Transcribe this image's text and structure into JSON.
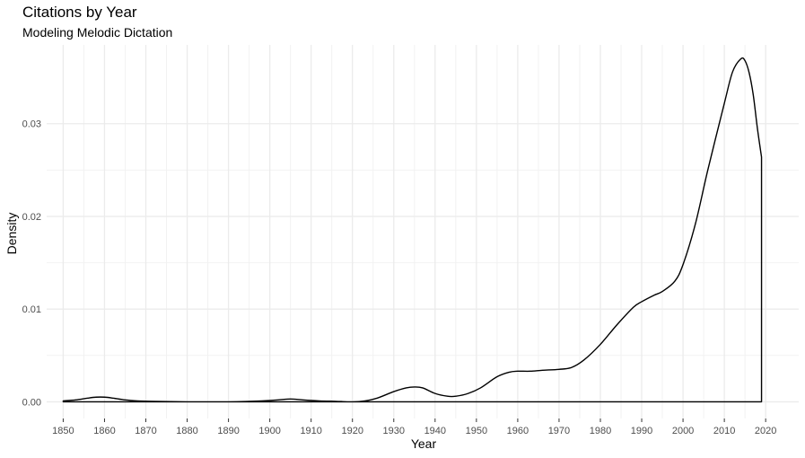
{
  "chart_data": {
    "type": "area",
    "title": "Citations by Year",
    "subtitle": "Modeling Melodic Dictation",
    "xlabel": "Year",
    "ylabel": "Density",
    "xlim": [
      1846,
      2028
    ],
    "ylim": [
      -0.0018,
      0.0385
    ],
    "x_ticks": [
      1850,
      1860,
      1870,
      1880,
      1890,
      1900,
      1910,
      1920,
      1930,
      1940,
      1950,
      1960,
      1970,
      1980,
      1990,
      2000,
      2010,
      2020
    ],
    "y_ticks": [
      0.0,
      0.01,
      0.02,
      0.03
    ],
    "y_tick_labels": [
      "0.00",
      "0.01",
      "0.02",
      "0.03"
    ],
    "grid": true,
    "legend": "none",
    "series": [
      {
        "x": [
          1850,
          1853,
          1856,
          1858,
          1860,
          1862,
          1865,
          1868,
          1872,
          1880,
          1890,
          1895,
          1898,
          1902,
          1905,
          1908,
          1912,
          1916,
          1920,
          1923,
          1926,
          1930,
          1933,
          1935,
          1937,
          1940,
          1943,
          1945,
          1948,
          1951,
          1955,
          1958,
          1960,
          1963,
          1966,
          1970,
          1973,
          1976,
          1980,
          1984,
          1988,
          1990,
          1993,
          1995,
          1998,
          2000,
          2003,
          2006,
          2010,
          2012,
          2014,
          2015,
          2016,
          2017,
          2018,
          2019
        ],
        "y": [
          0.0001,
          0.0002,
          0.0004,
          0.0005,
          0.0005,
          0.0004,
          0.0002,
          0.0001,
          5e-05,
          0.0,
          0.0,
          5e-05,
          0.0001,
          0.0002,
          0.0003,
          0.0002,
          0.0001,
          5e-05,
          0.0,
          0.0001,
          0.0004,
          0.0011,
          0.0015,
          0.0016,
          0.0015,
          0.0009,
          0.0006,
          0.0006,
          0.0009,
          0.0015,
          0.0027,
          0.0032,
          0.0033,
          0.0033,
          0.0034,
          0.0035,
          0.0037,
          0.0045,
          0.0062,
          0.0083,
          0.0102,
          0.0108,
          0.0115,
          0.0119,
          0.013,
          0.0148,
          0.0192,
          0.025,
          0.0322,
          0.0356,
          0.037,
          0.0368,
          0.0355,
          0.0331,
          0.0295,
          0.0264
        ],
        "color": "#000000"
      }
    ]
  }
}
